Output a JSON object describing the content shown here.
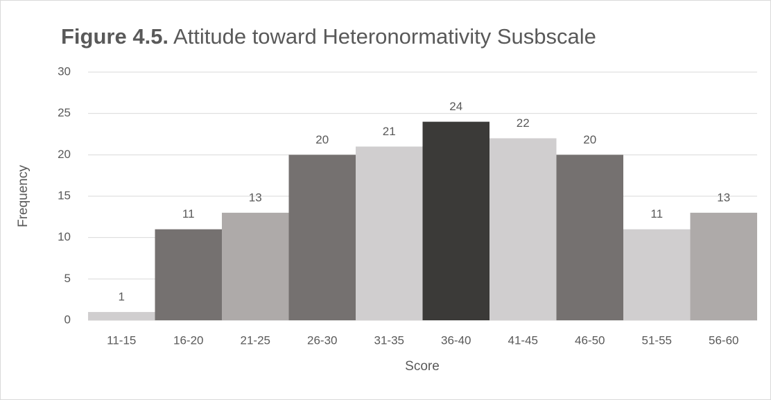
{
  "chart_data": {
    "type": "bar",
    "title_label": "Figure 4.5.",
    "title": "Attitude toward Heteronormativity Susbscale",
    "x_label": "Score",
    "y_label": "Frequency",
    "categories": [
      "11-15",
      "16-20",
      "21-25",
      "26-30",
      "31-35",
      "36-40",
      "41-45",
      "46-50",
      "51-55",
      "56-60"
    ],
    "values": [
      1,
      11,
      13,
      20,
      21,
      24,
      22,
      20,
      11,
      13
    ],
    "colors": [
      "#d0cecf",
      "#757170",
      "#aeaaa9",
      "#757170",
      "#d0cecf",
      "#3b3a38",
      "#d0cecf",
      "#757170",
      "#d0cecf",
      "#aeaaa9"
    ],
    "ylim": [
      0,
      30
    ],
    "yticks": [
      0,
      5,
      10,
      15,
      20,
      25,
      30
    ],
    "grid": true
  }
}
